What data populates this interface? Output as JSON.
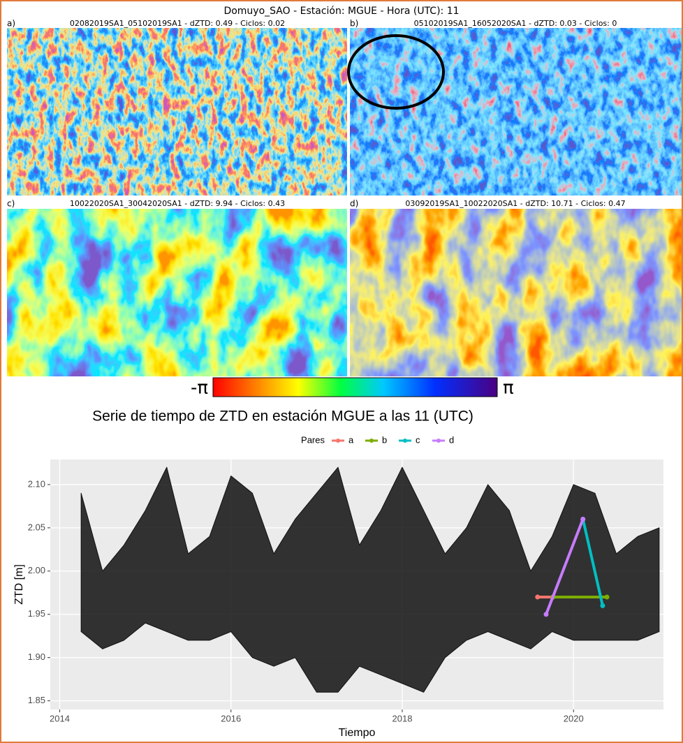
{
  "header": {
    "title": "Domuyo_SAO - Estación: MGUE - Hora (UTC): 11"
  },
  "panels": [
    {
      "label": "a)",
      "subtitle": "02082019SA1_05102019SA1 - dZTD: 0.49 - Ciclos: 0.02"
    },
    {
      "label": "b)",
      "subtitle": "05102019SA1_16052020SA1 - dZTD: 0.03 - Ciclos: 0"
    },
    {
      "label": "c)",
      "subtitle": "10022020SA1_30042020SA1 - dZTD: 9.94 - Ciclos: 0.43"
    },
    {
      "label": "d)",
      "subtitle": "03092019SA1_10022020SA1 - dZTD: 10.71 - Ciclos: 0.47"
    }
  ],
  "colorbar": {
    "min_label": "-π",
    "max_label": "π"
  },
  "chart_data": {
    "type": "scatter",
    "title": "Serie de tiempo de ZTD en estación MGUE a las 11 (UTC)",
    "legend_title": "Pares",
    "xlabel": "Tiempo",
    "ylabel": "ZTD [m]",
    "xlim": [
      2013.89,
      2021.05
    ],
    "ylim": [
      1.84,
      2.129
    ],
    "xticks": [
      2014,
      2016,
      2018,
      2020
    ],
    "yticks": [
      1.85,
      {
        "value": 1.9,
        "label": "1.90"
      },
      1.95,
      {
        "value": 2.0,
        "label": "2.00"
      },
      2.05,
      {
        "value": 2.1,
        "label": "2.10"
      }
    ],
    "grid": true,
    "envelope": {
      "color": "#111111",
      "x": [
        2014.25,
        2014.5,
        2014.75,
        2015.0,
        2015.25,
        2015.5,
        2015.75,
        2016.0,
        2016.25,
        2016.5,
        2016.75,
        2017.0,
        2017.25,
        2017.5,
        2017.75,
        2018.0,
        2018.25,
        2018.5,
        2018.75,
        2019.0,
        2019.25,
        2019.5,
        2019.75,
        2020.0,
        2020.25,
        2020.5,
        2020.75,
        2021.0
      ],
      "low": [
        1.93,
        1.91,
        1.92,
        1.94,
        1.93,
        1.92,
        1.92,
        1.93,
        1.9,
        1.89,
        1.9,
        1.86,
        1.86,
        1.89,
        1.88,
        1.87,
        1.86,
        1.9,
        1.92,
        1.93,
        1.92,
        1.91,
        1.93,
        1.92,
        1.92,
        1.92,
        1.92,
        1.93
      ],
      "high": [
        2.09,
        2.0,
        2.03,
        2.07,
        2.12,
        2.02,
        2.04,
        2.11,
        2.09,
        2.02,
        2.06,
        2.09,
        2.12,
        2.03,
        2.07,
        2.12,
        2.07,
        2.02,
        2.05,
        2.1,
        2.07,
        2.0,
        2.04,
        2.1,
        2.09,
        2.02,
        2.04,
        2.05
      ]
    },
    "series": [
      {
        "name": "a",
        "color": "#f8766d",
        "x": [
          2019.58,
          2019.76
        ],
        "values": [
          1.97,
          1.97
        ]
      },
      {
        "name": "b",
        "color": "#7cae00",
        "x": [
          2019.76,
          2020.39
        ],
        "values": [
          1.97,
          1.97
        ]
      },
      {
        "name": "c",
        "color": "#00bfc4",
        "x": [
          2020.11,
          2020.34
        ],
        "values": [
          2.06,
          1.96
        ]
      },
      {
        "name": "d",
        "color": "#c77cff",
        "x": [
          2019.68,
          2020.11
        ],
        "values": [
          1.95,
          2.06
        ]
      }
    ]
  }
}
